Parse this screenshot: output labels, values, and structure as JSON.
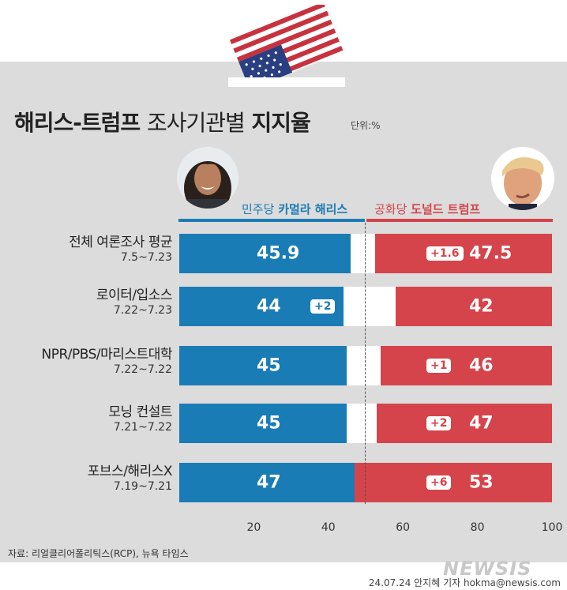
{
  "title_bold": "해리스-트럼프",
  "title_normal": "조사기관별",
  "title_bold2": "지지율",
  "unit": "단위:%",
  "candidates": {
    "left_party": "민주당",
    "left_name": "카멀라 해리스",
    "right_party": "공화당",
    "right_name": "도널드 트럼프"
  },
  "colors": {
    "harris": "#1a7cb5",
    "trump": "#d5444a",
    "panel": "#dcdcdc"
  },
  "chart_data": {
    "type": "bar",
    "orientation": "horizontal-diverging",
    "categories": [
      {
        "name": "전체 여론조사 평균",
        "date": "7.5~7.23"
      },
      {
        "name": "로이터/입소스",
        "date": "7.22~7.23"
      },
      {
        "name": "NPR/PBS/마리스트대학",
        "date": "7.22~7.22"
      },
      {
        "name": "모닝 컨설트",
        "date": "7.21~7.22"
      },
      {
        "name": "포브스/해리스X",
        "date": "7.19~7.21"
      }
    ],
    "series": [
      {
        "name": "카멀라 해리스",
        "values": [
          45.9,
          44,
          45,
          45,
          47
        ],
        "labels": [
          "45.9",
          "44",
          "45",
          "45",
          "47"
        ]
      },
      {
        "name": "도널드 트럼프",
        "values": [
          47.5,
          42,
          46,
          47,
          53
        ],
        "labels": [
          "47.5",
          "42",
          "46",
          "47",
          "53"
        ]
      }
    ],
    "leads": [
      {
        "side": "right",
        "text": "+1.6"
      },
      {
        "side": "left",
        "text": "+2"
      },
      {
        "side": "right",
        "text": "+1"
      },
      {
        "side": "right",
        "text": "+2"
      },
      {
        "side": "right",
        "text": "+6"
      }
    ],
    "xticks": [
      "20",
      "40",
      "60",
      "80",
      "100"
    ],
    "xlim": [
      0,
      100
    ],
    "midline": 50
  },
  "source": "자료: 리얼클리어폴리틱스(RCP), 뉴욕 타임스",
  "logo": "NEWSIS",
  "credit": "24.07.24 안지혜 기자 hokma@newsis.com"
}
